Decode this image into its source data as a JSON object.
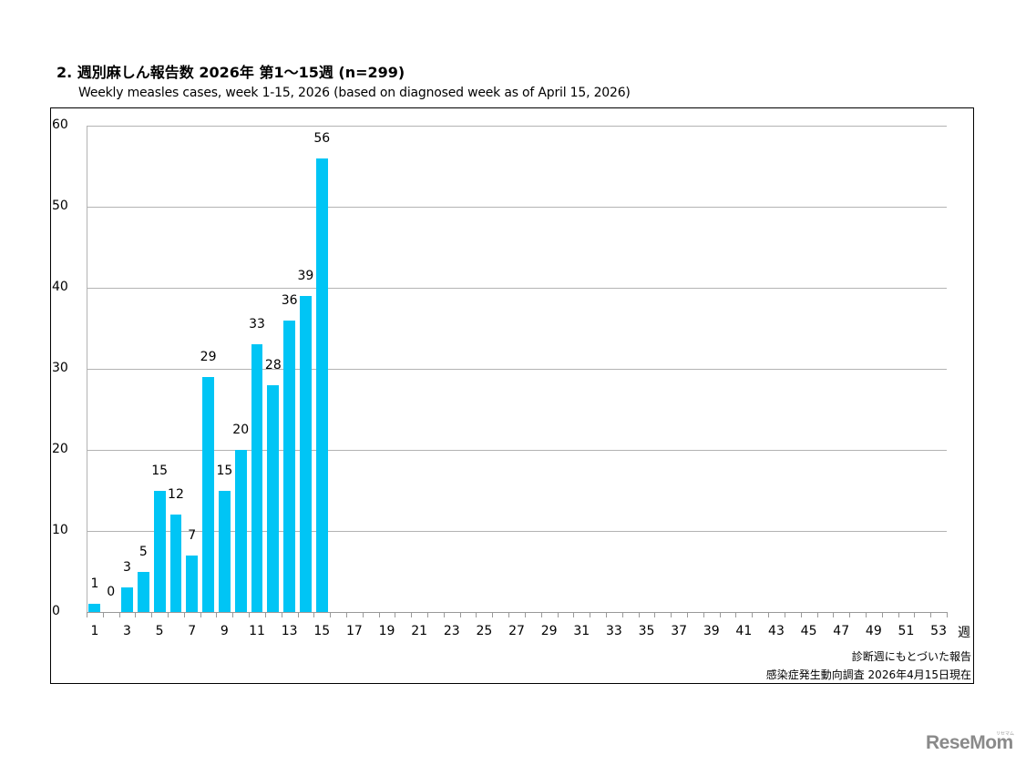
{
  "header": {
    "title": "2. 週別麻しん報告数  2026年 第1～15週 (n=299)",
    "subtitle": "Weekly measles cases, week 1-15, 2026 (based on diagnosed week as of April 15, 2026)"
  },
  "footer": {
    "note1": "診断週にもとづいた報告",
    "note2": "感染症発生動向調査 2026年4月15日現在"
  },
  "watermark": {
    "text": "ReseMom",
    "subtext": "リセマム"
  },
  "colors": {
    "bar": "#00c5f5",
    "grid": "#b3b3b3"
  },
  "chart_data": {
    "type": "bar",
    "title": "2. 週別麻しん報告数  2026年 第1～15週 (n=299)",
    "subtitle": "Weekly measles cases, week 1-15, 2026 (based on diagnosed week as of April 15, 2026)",
    "xlabel": "週",
    "ylabel": "",
    "ylim": [
      0,
      60
    ],
    "yticks": [
      0,
      10,
      20,
      30,
      40,
      50,
      60
    ],
    "xlim": [
      1,
      53
    ],
    "xticks": [
      1,
      3,
      5,
      7,
      9,
      11,
      13,
      15,
      17,
      19,
      21,
      23,
      25,
      27,
      29,
      31,
      33,
      35,
      37,
      39,
      41,
      43,
      45,
      47,
      49,
      51,
      53
    ],
    "grid": true,
    "legend": null,
    "categories": [
      1,
      2,
      3,
      4,
      5,
      6,
      7,
      8,
      9,
      10,
      11,
      12,
      13,
      14,
      15
    ],
    "values": [
      1,
      0,
      3,
      5,
      15,
      12,
      7,
      29,
      15,
      20,
      33,
      28,
      36,
      39,
      56
    ],
    "data_labels": true,
    "total": 299,
    "annotations": [
      "診断週にもとづいた報告",
      "感染症発生動向調査 2026年4月15日現在"
    ]
  }
}
